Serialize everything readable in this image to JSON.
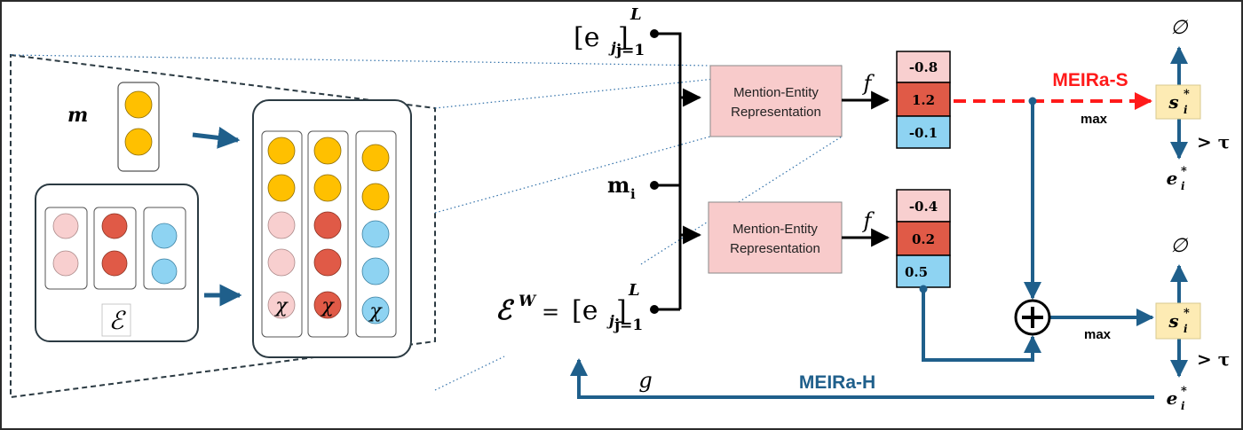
{
  "labels": {
    "m": "m",
    "entity_set": "ℰ",
    "chi": "χ",
    "e_head": "[e",
    "e_sub_j": "j",
    "e_close": "]",
    "e_sup_L": "L",
    "e_sub_range": "j=1",
    "ew_prefix": "ℰ",
    "ew_sup": "W",
    "ew_eq": "=",
    "mi_main": "m",
    "mi_sub": "i",
    "mer_line1": "Mention-Entity",
    "mer_line2": "Representation",
    "f": "f",
    "g": "g",
    "meira_s": "MEIRa-S",
    "meira_h": "MEIRa-H",
    "max": "max",
    "empty_set": "∅",
    "gt_tau": "> τ",
    "s_star": "s",
    "e_star": "e",
    "sub_i": "i",
    "star": "*",
    "plus": "+"
  },
  "scores_top": [
    "-0.8",
    "1.2",
    "-0.1"
  ],
  "scores_bottom": [
    "-0.4",
    "0.2",
    "0.5"
  ],
  "colors": {
    "yellow": "#FFC000",
    "pink": "#F8CFCF",
    "red": "#E05A47",
    "blue": "#8ED3F2",
    "pink_box": "#F8CBCB",
    "cream_box": "#FDEBB4",
    "steel_blue": "#1F5F8B",
    "meira_red": "#FF1A1A",
    "frame": "#2B3A42"
  }
}
